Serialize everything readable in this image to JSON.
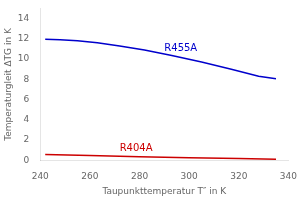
{
  "chart_data": {
    "type": "line",
    "xlabel": "Taupunkttemperatur T″ in K",
    "ylabel": "Temperaturgleit ΔTG in K",
    "xlim": [
      240,
      340
    ],
    "ylim": [
      0,
      15
    ],
    "xticks": [
      240,
      260,
      280,
      300,
      320,
      340
    ],
    "yticks": [
      0,
      2,
      4,
      6,
      8,
      10,
      12,
      14
    ],
    "grid": false,
    "series": [
      {
        "color": "#0000cc",
        "x": [
          242,
          248,
          255,
          263,
          272,
          282,
          293,
          305,
          317,
          328,
          335
        ],
        "values": [
          11.95,
          11.9,
          11.8,
          11.6,
          11.3,
          10.9,
          10.35,
          9.7,
          9.0,
          8.3,
          8.05
        ]
      },
      {
        "color": "#cc0000",
        "x": [
          242,
          260,
          280,
          300,
          320,
          335
        ],
        "values": [
          0.58,
          0.48,
          0.37,
          0.27,
          0.18,
          0.12
        ]
      }
    ],
    "annotations": [
      {
        "text": "R455A",
        "x": 290,
        "y": 10.6,
        "color": "#0000cc"
      },
      {
        "text": "R404A",
        "x": 272,
        "y": 0.72,
        "color": "#cc0000"
      }
    ]
  }
}
